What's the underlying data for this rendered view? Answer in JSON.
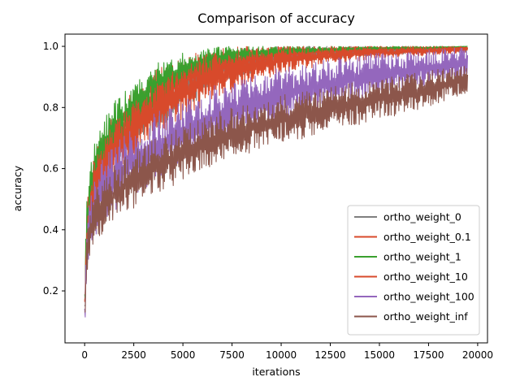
{
  "chart_data": {
    "type": "line",
    "title": "Comparison of accuracy",
    "xlabel": "iterations",
    "ylabel": "accuracy",
    "xlim": [
      -1000,
      20500
    ],
    "ylim": [
      0.03,
      1.04
    ],
    "xticks": [
      0,
      2500,
      5000,
      7500,
      10000,
      12500,
      15000,
      17500,
      20000
    ],
    "yticks": [
      0.2,
      0.4,
      0.6,
      0.8,
      1.0
    ],
    "ytick_labels": [
      "0.2",
      "0.4",
      "0.6",
      "0.8",
      "1.0"
    ],
    "grid": false,
    "legend_position": "lower-right",
    "series": [
      {
        "name": "ortho_weight_0",
        "color": "#7f7f7f",
        "x": [
          0,
          100,
          300,
          700,
          1500,
          2500,
          3500,
          5000,
          6500,
          8000,
          10000,
          12500,
          15000,
          17500,
          19500
        ],
        "upper": [
          0.2,
          0.45,
          0.58,
          0.68,
          0.76,
          0.82,
          0.87,
          0.93,
          0.97,
          0.99,
          1.0,
          1.0,
          1.0,
          1.0,
          1.0
        ],
        "lower": [
          0.08,
          0.25,
          0.4,
          0.5,
          0.58,
          0.65,
          0.71,
          0.79,
          0.86,
          0.9,
          0.94,
          0.96,
          0.97,
          0.98,
          0.98
        ]
      },
      {
        "name": "ortho_weight_0.1",
        "color": "#d84a2b",
        "x": [
          0,
          100,
          300,
          700,
          1500,
          2500,
          3500,
          5000,
          6500,
          8000,
          10000,
          12500,
          15000,
          17500,
          19500
        ],
        "upper": [
          0.22,
          0.48,
          0.6,
          0.7,
          0.79,
          0.86,
          0.92,
          0.97,
          0.99,
          1.0,
          1.0,
          1.0,
          1.0,
          1.0,
          1.0
        ],
        "lower": [
          0.08,
          0.3,
          0.44,
          0.53,
          0.62,
          0.69,
          0.75,
          0.82,
          0.87,
          0.91,
          0.95,
          0.97,
          0.98,
          0.99,
          0.99
        ]
      },
      {
        "name": "ortho_weight_1",
        "color": "#3aa02e",
        "x": [
          0,
          100,
          300,
          700,
          1500,
          2500,
          3500,
          5000,
          6500,
          8000,
          10000,
          12500,
          15000,
          17500,
          19500
        ],
        "upper": [
          0.25,
          0.5,
          0.63,
          0.73,
          0.82,
          0.89,
          0.94,
          0.98,
          1.0,
          1.0,
          1.0,
          1.0,
          1.0,
          1.0,
          1.0
        ],
        "lower": [
          0.09,
          0.32,
          0.46,
          0.56,
          0.65,
          0.73,
          0.8,
          0.87,
          0.92,
          0.95,
          0.97,
          0.98,
          0.99,
          0.99,
          1.0
        ]
      },
      {
        "name": "ortho_weight_10",
        "color": "#d84a2b",
        "x": [
          0,
          100,
          300,
          700,
          1500,
          2500,
          3500,
          5000,
          6500,
          8000,
          10000,
          12500,
          15000,
          17500,
          19500
        ],
        "upper": [
          0.22,
          0.46,
          0.58,
          0.67,
          0.75,
          0.82,
          0.88,
          0.94,
          0.98,
          0.99,
          1.0,
          1.0,
          1.0,
          1.0,
          1.0
        ],
        "lower": [
          0.08,
          0.27,
          0.4,
          0.49,
          0.57,
          0.63,
          0.69,
          0.76,
          0.82,
          0.86,
          0.91,
          0.94,
          0.96,
          0.97,
          0.98
        ]
      },
      {
        "name": "ortho_weight_100",
        "color": "#9467bd",
        "x": [
          0,
          100,
          300,
          700,
          1500,
          2500,
          3500,
          5000,
          6500,
          8000,
          10000,
          12500,
          15000,
          17500,
          19500
        ],
        "upper": [
          0.18,
          0.42,
          0.53,
          0.61,
          0.68,
          0.74,
          0.78,
          0.83,
          0.87,
          0.9,
          0.93,
          0.96,
          0.98,
          0.99,
          1.0
        ],
        "lower": [
          0.07,
          0.22,
          0.33,
          0.4,
          0.46,
          0.51,
          0.55,
          0.61,
          0.66,
          0.7,
          0.75,
          0.8,
          0.84,
          0.87,
          0.89
        ]
      },
      {
        "name": "ortho_weight_inf",
        "color": "#8c564b",
        "x": [
          0,
          100,
          300,
          700,
          1500,
          2500,
          3500,
          5000,
          6500,
          8000,
          10000,
          12500,
          15000,
          17500,
          19500
        ],
        "upper": [
          0.16,
          0.38,
          0.48,
          0.55,
          0.61,
          0.66,
          0.7,
          0.74,
          0.78,
          0.81,
          0.84,
          0.87,
          0.9,
          0.92,
          0.94
        ],
        "lower": [
          0.07,
          0.21,
          0.3,
          0.37,
          0.42,
          0.47,
          0.51,
          0.56,
          0.6,
          0.64,
          0.68,
          0.72,
          0.76,
          0.8,
          0.85
        ]
      }
    ]
  }
}
